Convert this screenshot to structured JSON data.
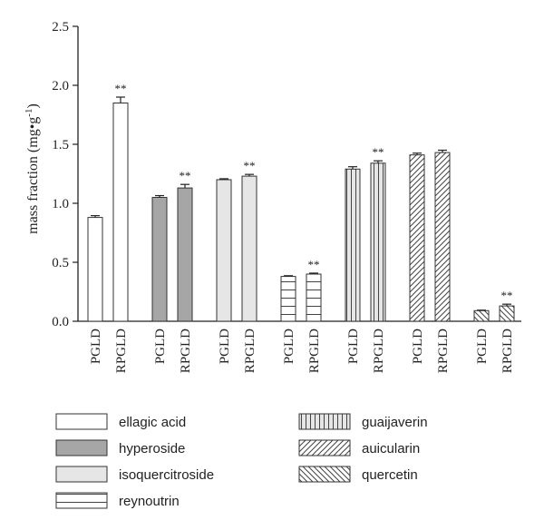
{
  "chart_data": {
    "type": "bar",
    "ylabel": "mass fraction (mg•g",
    "ylabel_sup": "-1",
    "ylabel_close": ")",
    "ylim": [
      0,
      2.5
    ],
    "yticks": [
      "0.0",
      "0.5",
      "1.0",
      "1.5",
      "2.0",
      "2.5"
    ],
    "compounds": [
      {
        "name": "ellagic acid",
        "fill": "#ffffff",
        "pattern": "none",
        "bars": [
          {
            "label": "PGLD",
            "value": 0.88,
            "error": 0.015,
            "sig": ""
          },
          {
            "label": "RPGLD",
            "value": 1.85,
            "error": 0.05,
            "sig": "**"
          }
        ]
      },
      {
        "name": "hyperoside",
        "fill": "#a6a6a6",
        "pattern": "none",
        "bars": [
          {
            "label": "PGLD",
            "value": 1.05,
            "error": 0.015,
            "sig": ""
          },
          {
            "label": "RPGLD",
            "value": 1.13,
            "error": 0.03,
            "sig": "**"
          }
        ]
      },
      {
        "name": "isoquercitroside",
        "fill": "#e6e6e6",
        "pattern": "none",
        "bars": [
          {
            "label": "PGLD",
            "value": 1.2,
            "error": 0.008,
            "sig": ""
          },
          {
            "label": "RPGLD",
            "value": 1.23,
            "error": 0.015,
            "sig": "**"
          }
        ]
      },
      {
        "name": "reynoutrin",
        "fill": "#ffffff",
        "pattern": "horizontal",
        "bars": [
          {
            "label": "PGLD",
            "value": 0.38,
            "error": 0.006,
            "sig": ""
          },
          {
            "label": "RPGLD",
            "value": 0.4,
            "error": 0.008,
            "sig": "**"
          }
        ]
      },
      {
        "name": "guaijaverin",
        "fill": "#e6e6e6",
        "pattern": "vertical",
        "bars": [
          {
            "label": "PGLD",
            "value": 1.29,
            "error": 0.02,
            "sig": ""
          },
          {
            "label": "RPGLD",
            "value": 1.34,
            "error": 0.02,
            "sig": "**"
          }
        ]
      },
      {
        "name": "auicularin",
        "fill": "#ffffff",
        "pattern": "diagonal",
        "bars": [
          {
            "label": "PGLD",
            "value": 1.41,
            "error": 0.015,
            "sig": ""
          },
          {
            "label": "RPGLD",
            "value": 1.43,
            "error": 0.02,
            "sig": ""
          }
        ]
      },
      {
        "name": "quercetin",
        "fill": "#ffffff",
        "pattern": "back-diagonal",
        "bars": [
          {
            "label": "PGLD",
            "value": 0.09,
            "error": 0.004,
            "sig": ""
          },
          {
            "label": "RPGLD",
            "value": 0.13,
            "error": 0.015,
            "sig": "**"
          }
        ]
      }
    ],
    "legend_placement": "bottom"
  }
}
